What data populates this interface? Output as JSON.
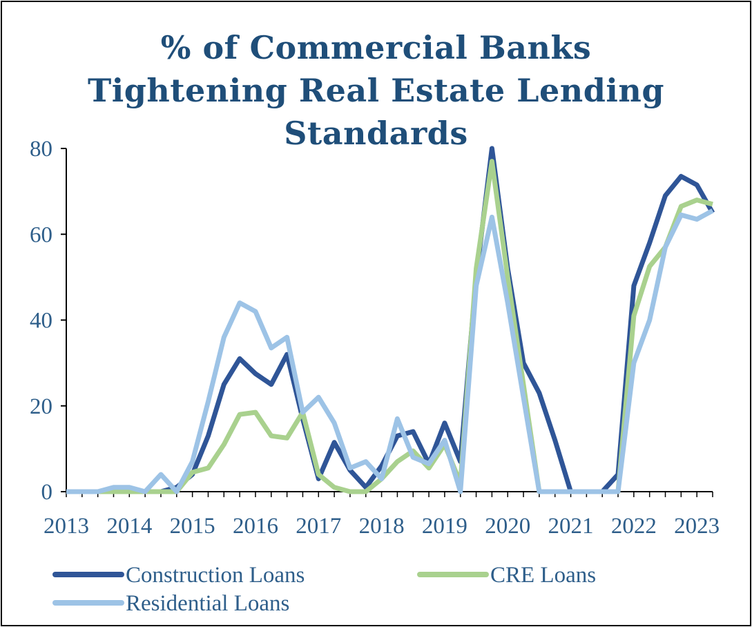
{
  "chart_data": {
    "type": "line",
    "title_lines": [
      "% of Commercial Banks",
      "Tightening Real Estate Lending",
      "Standards"
    ],
    "xlabel": "",
    "ylabel": "",
    "ylim": [
      0,
      80
    ],
    "yticks": [
      0,
      20,
      40,
      60,
      80
    ],
    "x_tick_labels": [
      "2013",
      "2014",
      "2015",
      "2016",
      "2017",
      "2018",
      "2019",
      "2020",
      "2021",
      "2022",
      "2023"
    ],
    "grid": false,
    "legend_position": "bottom",
    "x": [
      2013.0,
      2013.25,
      2013.5,
      2013.75,
      2014.0,
      2014.25,
      2014.5,
      2014.75,
      2015.0,
      2015.25,
      2015.5,
      2015.75,
      2016.0,
      2016.25,
      2016.5,
      2016.75,
      2017.0,
      2017.25,
      2017.5,
      2017.75,
      2018.0,
      2018.25,
      2018.5,
      2018.75,
      2019.0,
      2019.25,
      2019.5,
      2019.75,
      2020.0,
      2020.25,
      2020.5,
      2020.75,
      2021.0,
      2021.25,
      2021.5,
      2021.75,
      2022.0,
      2022.25,
      2022.5,
      2022.75,
      2023.0,
      2023.25
    ],
    "series": [
      {
        "name": "Construction Loans",
        "color": "#2f5597",
        "values": [
          0,
          0,
          0,
          0,
          0,
          0,
          0,
          1,
          4,
          13,
          25,
          31,
          27.5,
          25,
          32,
          17,
          3,
          11.5,
          5,
          1,
          6,
          13,
          14,
          6.5,
          16,
          7,
          50,
          80,
          52,
          30,
          23,
          12,
          0,
          0,
          0,
          4,
          48,
          58,
          69,
          73.5,
          71.5,
          65
        ]
      },
      {
        "name": "CRE Loans",
        "color": "#a9d18e",
        "values": [
          0,
          0,
          0,
          0,
          0,
          0,
          0,
          0,
          4.5,
          5.5,
          11,
          18,
          18.5,
          13,
          12.5,
          18.5,
          4,
          1,
          0,
          0,
          3,
          7,
          9.5,
          5.5,
          11,
          2,
          52,
          77,
          50,
          25,
          0,
          0,
          0,
          0,
          0,
          0,
          41,
          52.5,
          57,
          66.5,
          68,
          67
        ]
      },
      {
        "name": "Residential Loans",
        "color": "#9dc3e6",
        "values": [
          0,
          0,
          0,
          1,
          1,
          0,
          4,
          0,
          7,
          21,
          36,
          44,
          42,
          33.5,
          36,
          18.5,
          22,
          16,
          5.5,
          7,
          3,
          17,
          8,
          6.5,
          12,
          0,
          48,
          64,
          44,
          22,
          0,
          0,
          0,
          0,
          0,
          0,
          30,
          40,
          57,
          64.5,
          63.5,
          65.5
        ]
      }
    ]
  }
}
